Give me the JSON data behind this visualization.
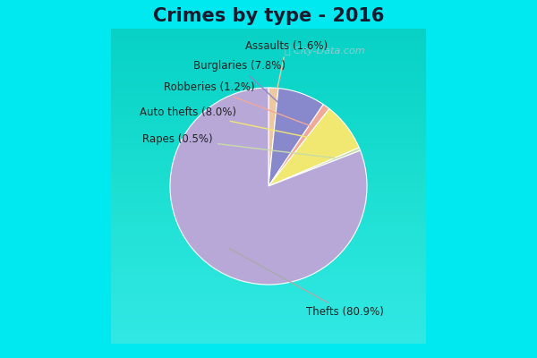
{
  "title": "Crimes by type - 2016",
  "labels_order": [
    "Assaults",
    "Burglaries",
    "Robberies",
    "Auto thefts",
    "Rapes",
    "Thefts"
  ],
  "values_order": [
    1.6,
    7.8,
    1.2,
    8.0,
    0.5,
    80.9
  ],
  "colors_map": {
    "Thefts": "#b8a8d8",
    "Auto thefts": "#f0e870",
    "Burglaries": "#8888cc",
    "Assaults": "#f0c8a0",
    "Robberies": "#f0a898",
    "Rapes": "#c8dca8"
  },
  "label_display": {
    "Assaults": "Assaults (1.6%)",
    "Burglaries": "Burglaries (7.8%)",
    "Robberies": "Robberies (1.2%)",
    "Auto thefts": "Auto thefts (8.0%)",
    "Rapes": "Rapes (0.5%)",
    "Thefts": "Thefts (80.9%)"
  },
  "title_fontsize": 15,
  "label_fontsize": 8.5,
  "cyan_border_color": "#00e8f0",
  "inner_bg_top": "#d0ece0",
  "inner_bg_bottom": "#e8f8f0"
}
